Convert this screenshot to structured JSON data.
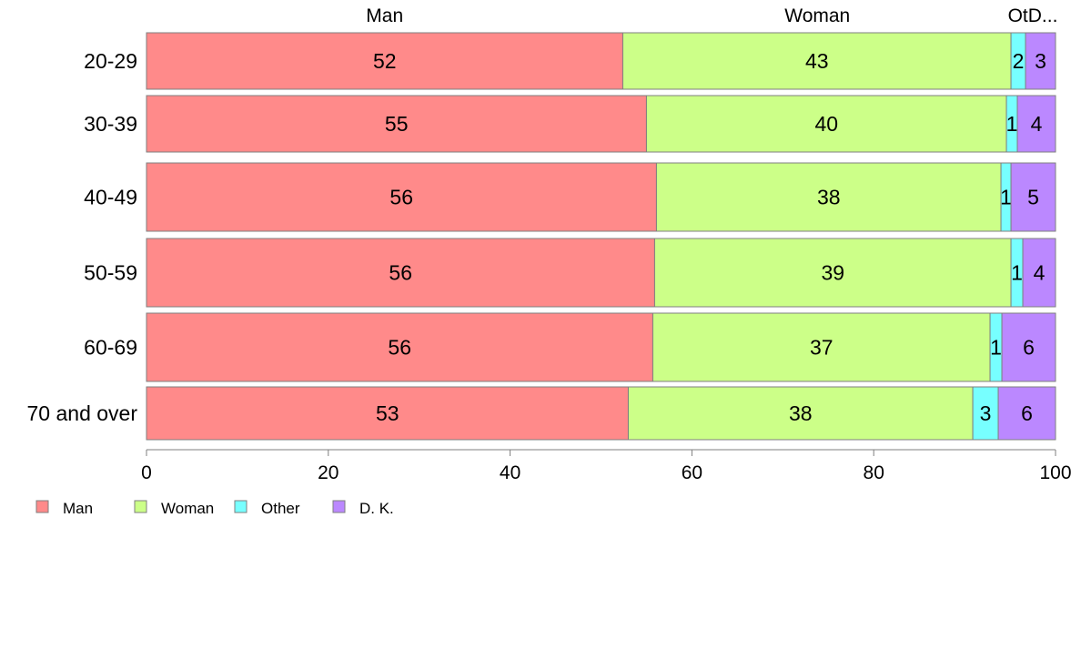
{
  "chart_data": {
    "type": "bar",
    "orientation": "horizontal",
    "stacked": true,
    "categories": [
      "20-29",
      "30-39",
      "40-49",
      "50-59",
      "60-69",
      "70 and over"
    ],
    "series": [
      {
        "name": "Man",
        "color": "#FF8A8A",
        "values": [
          52.4,
          55.0,
          56.1,
          55.9,
          55.7,
          53.0
        ]
      },
      {
        "name": "Woman",
        "color": "#CCFF88",
        "values": [
          42.7,
          39.6,
          37.9,
          39.2,
          37.1,
          37.9
        ]
      },
      {
        "name": "Other",
        "color": "#77FFFF",
        "values": [
          1.6,
          1.2,
          1.1,
          1.3,
          1.3,
          2.8
        ]
      },
      {
        "name": "D. K.",
        "color": "#BB88FF",
        "values": [
          3.3,
          4.2,
          4.9,
          3.6,
          5.9,
          6.3
        ]
      }
    ],
    "data_labels": [
      [
        "52",
        "43",
        "2",
        "3"
      ],
      [
        "55",
        "40",
        "1",
        "4"
      ],
      [
        "56",
        "38",
        "1",
        "5"
      ],
      [
        "56",
        "39",
        "1",
        "4"
      ],
      [
        "56",
        "37",
        "1",
        "6"
      ],
      [
        "53",
        "38",
        "3",
        "6"
      ]
    ],
    "top_labels": [
      "Man",
      "Woman",
      "OtD..."
    ],
    "top_label_positions": [
      26.2,
      73.8,
      97.5
    ],
    "xlim": [
      0,
      100
    ],
    "xticks": [
      0,
      20,
      40,
      60,
      80,
      100
    ],
    "grid": false,
    "legend": {
      "position": "bottom-left",
      "entries": [
        "Man",
        "Woman",
        "Other",
        "D. K."
      ]
    },
    "title": "",
    "xlabel": "",
    "ylabel": ""
  }
}
